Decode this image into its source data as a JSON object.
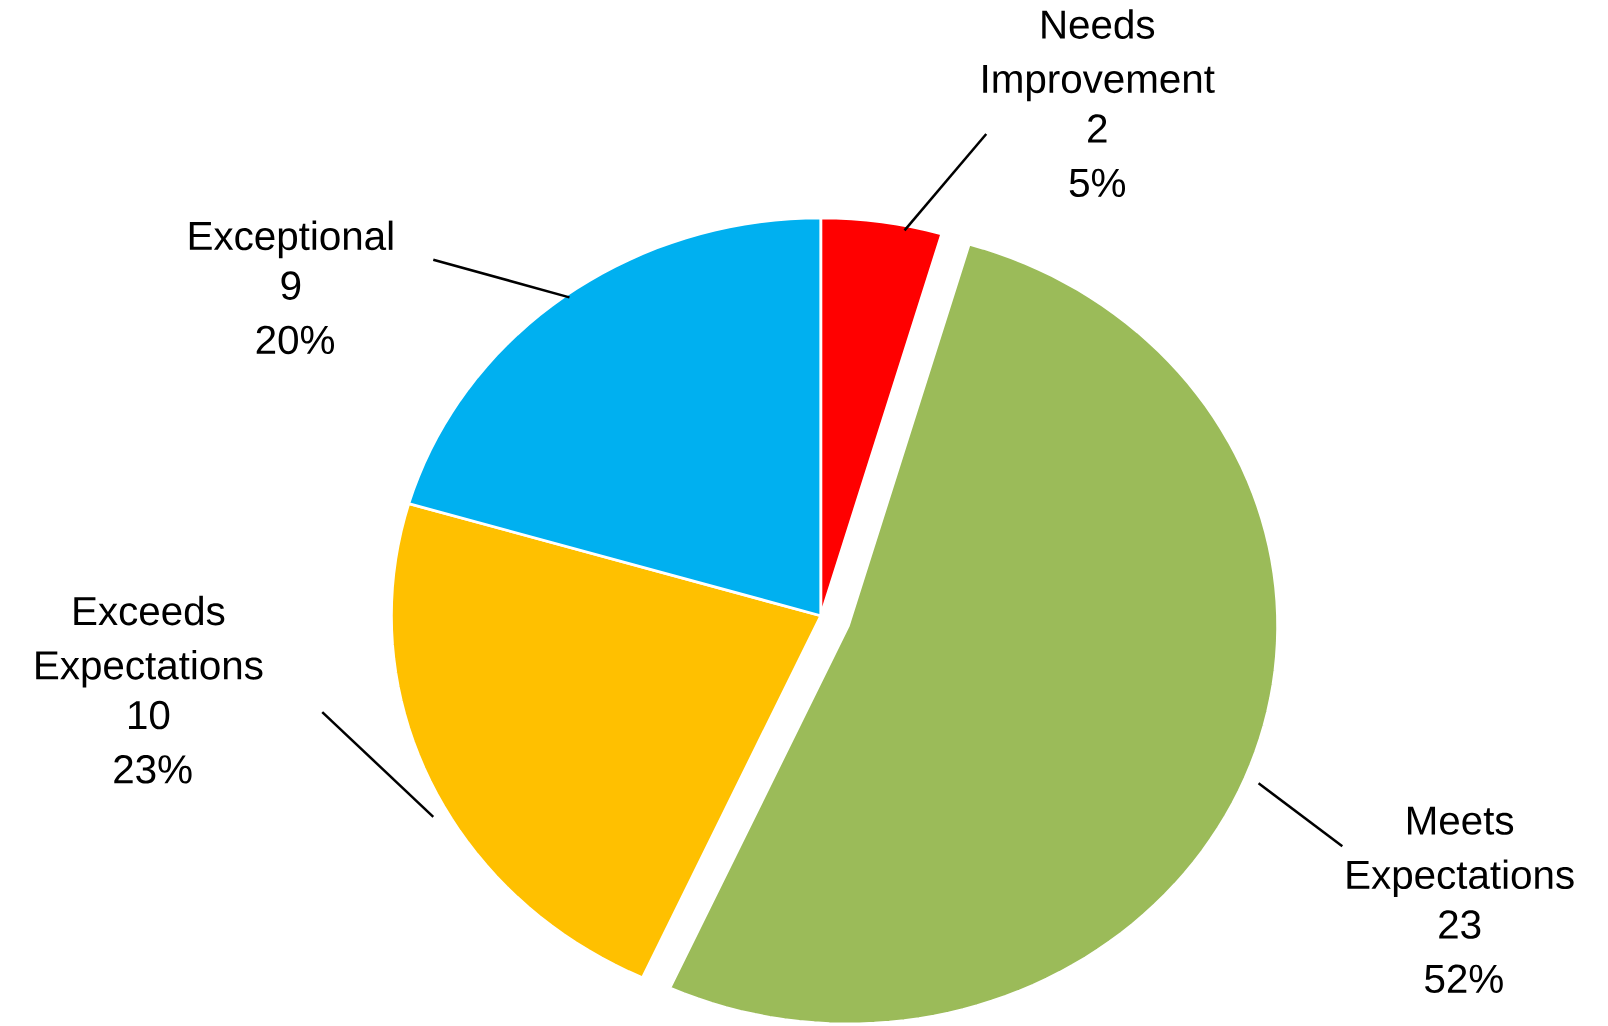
{
  "chart_data": {
    "type": "pie",
    "categories": [
      "Needs Improvement",
      "Meets Expectations",
      "Exceeds Expectations",
      "Exceptional"
    ],
    "values": [
      2,
      23,
      10,
      9
    ],
    "colors": [
      "#ff0000",
      "#9bbb59",
      "#ffc000",
      "#00b0f0"
    ],
    "value_labels": [
      "2 5%",
      "23 52%",
      "10 23%",
      "9 20%"
    ]
  }
}
